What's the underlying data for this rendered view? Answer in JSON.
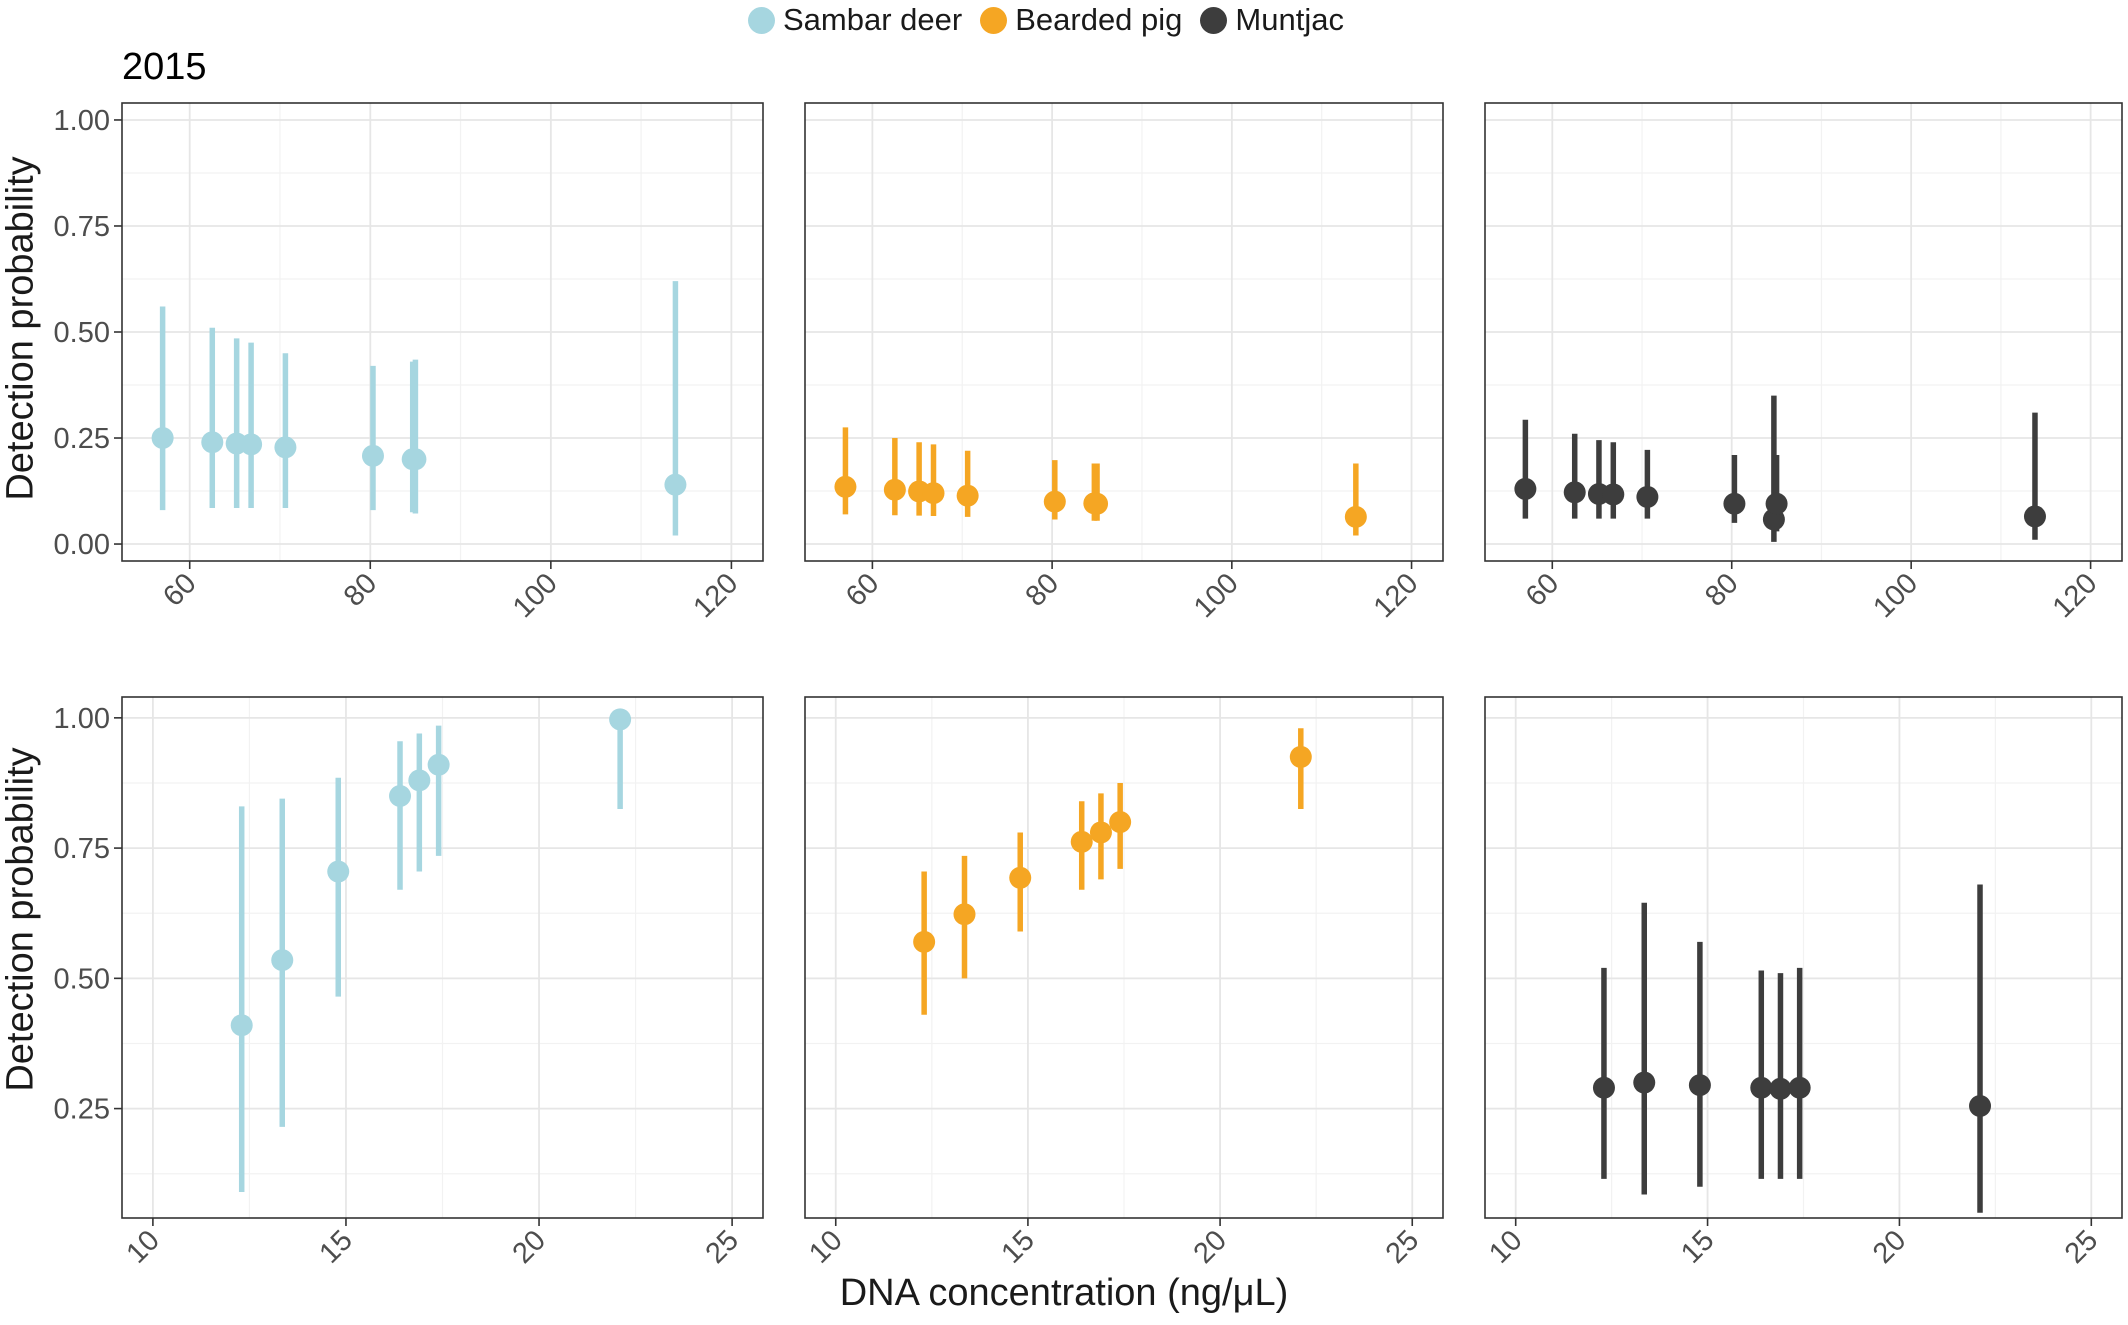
{
  "legend": {
    "items": [
      {
        "label": "Sambar deer",
        "color": "#A6D6E0"
      },
      {
        "label": "Bearded pig",
        "color": "#F5A623"
      },
      {
        "label": "Muntjac",
        "color": "#3D3D3D"
      }
    ]
  },
  "panel_title": "2015",
  "xlabel": "DNA concentration (ng/μL)",
  "ylabel": "Detection probability",
  "chart_data": [
    {
      "type": "scatter",
      "series_name": "Sambar deer",
      "color": "#A6D6E0",
      "title": "2015",
      "xlim": [
        52.5,
        123.5
      ],
      "ylim": [
        -0.04,
        1.04
      ],
      "xticks": [
        60,
        80,
        100,
        120
      ],
      "yticks": [
        0.0,
        0.25,
        0.5,
        0.75,
        1.0
      ],
      "ytick_labels": [
        "0.00",
        "0.25",
        "0.50",
        "0.75",
        "1.00"
      ],
      "points": [
        {
          "x": 57.0,
          "y": 0.25,
          "lo": 0.08,
          "hi": 0.56
        },
        {
          "x": 62.5,
          "y": 0.24,
          "lo": 0.085,
          "hi": 0.51
        },
        {
          "x": 65.2,
          "y": 0.237,
          "lo": 0.085,
          "hi": 0.485
        },
        {
          "x": 66.8,
          "y": 0.235,
          "lo": 0.085,
          "hi": 0.475
        },
        {
          "x": 70.6,
          "y": 0.228,
          "lo": 0.085,
          "hi": 0.45
        },
        {
          "x": 80.3,
          "y": 0.208,
          "lo": 0.08,
          "hi": 0.42
        },
        {
          "x": 84.7,
          "y": 0.2,
          "lo": 0.075,
          "hi": 0.43
        },
        {
          "x": 85.0,
          "y": 0.2,
          "lo": 0.072,
          "hi": 0.435
        },
        {
          "x": 113.8,
          "y": 0.14,
          "lo": 0.02,
          "hi": 0.62
        }
      ]
    },
    {
      "type": "scatter",
      "series_name": "Bearded pig",
      "color": "#F5A623",
      "xlim": [
        52.5,
        123.5
      ],
      "ylim": [
        -0.04,
        1.04
      ],
      "xticks": [
        60,
        80,
        100,
        120
      ],
      "points": [
        {
          "x": 57.0,
          "y": 0.135,
          "lo": 0.07,
          "hi": 0.275
        },
        {
          "x": 62.5,
          "y": 0.128,
          "lo": 0.068,
          "hi": 0.25
        },
        {
          "x": 65.2,
          "y": 0.124,
          "lo": 0.067,
          "hi": 0.24
        },
        {
          "x": 66.8,
          "y": 0.12,
          "lo": 0.066,
          "hi": 0.235
        },
        {
          "x": 70.6,
          "y": 0.114,
          "lo": 0.064,
          "hi": 0.22
        },
        {
          "x": 80.3,
          "y": 0.1,
          "lo": 0.058,
          "hi": 0.198
        },
        {
          "x": 84.7,
          "y": 0.096,
          "lo": 0.055,
          "hi": 0.19
        },
        {
          "x": 85.0,
          "y": 0.095,
          "lo": 0.055,
          "hi": 0.19
        },
        {
          "x": 113.8,
          "y": 0.064,
          "lo": 0.02,
          "hi": 0.19
        }
      ]
    },
    {
      "type": "scatter",
      "series_name": "Muntjac",
      "color": "#3D3D3D",
      "xlim": [
        52.5,
        123.5
      ],
      "ylim": [
        -0.04,
        1.04
      ],
      "xticks": [
        60,
        80,
        100,
        120
      ],
      "points": [
        {
          "x": 57.0,
          "y": 0.13,
          "lo": 0.06,
          "hi": 0.293
        },
        {
          "x": 62.5,
          "y": 0.122,
          "lo": 0.06,
          "hi": 0.26
        },
        {
          "x": 65.2,
          "y": 0.118,
          "lo": 0.06,
          "hi": 0.245
        },
        {
          "x": 66.8,
          "y": 0.117,
          "lo": 0.06,
          "hi": 0.24
        },
        {
          "x": 70.6,
          "y": 0.111,
          "lo": 0.06,
          "hi": 0.222
        },
        {
          "x": 80.3,
          "y": 0.095,
          "lo": 0.05,
          "hi": 0.21
        },
        {
          "x": 84.7,
          "y": 0.058,
          "lo": 0.005,
          "hi": 0.35
        },
        {
          "x": 85.0,
          "y": 0.095,
          "lo": 0.03,
          "hi": 0.21
        },
        {
          "x": 113.8,
          "y": 0.065,
          "lo": 0.01,
          "hi": 0.31
        }
      ]
    },
    {
      "type": "scatter",
      "series_name": "Sambar deer",
      "color": "#A6D6E0",
      "xlim": [
        9.2,
        25.8
      ],
      "ylim": [
        0.04,
        1.04
      ],
      "xticks": [
        10,
        15,
        20,
        25
      ],
      "yticks": [
        0.25,
        0.5,
        0.75,
        1.0
      ],
      "ytick_labels": [
        "0.25",
        "0.50",
        "0.75",
        "1.00"
      ],
      "points": [
        {
          "x": 12.3,
          "y": 0.41,
          "lo": 0.09,
          "hi": 0.83
        },
        {
          "x": 13.35,
          "y": 0.535,
          "lo": 0.215,
          "hi": 0.845
        },
        {
          "x": 14.8,
          "y": 0.705,
          "lo": 0.465,
          "hi": 0.885
        },
        {
          "x": 16.4,
          "y": 0.85,
          "lo": 0.67,
          "hi": 0.955
        },
        {
          "x": 16.9,
          "y": 0.88,
          "lo": 0.705,
          "hi": 0.97
        },
        {
          "x": 17.4,
          "y": 0.91,
          "lo": 0.735,
          "hi": 0.985
        },
        {
          "x": 22.1,
          "y": 0.997,
          "lo": 0.825,
          "hi": 1.0
        }
      ]
    },
    {
      "type": "scatter",
      "series_name": "Bearded pig",
      "color": "#F5A623",
      "xlim": [
        9.2,
        25.8
      ],
      "ylim": [
        0.04,
        1.04
      ],
      "xticks": [
        10,
        15,
        20,
        25
      ],
      "points": [
        {
          "x": 12.3,
          "y": 0.57,
          "lo": 0.43,
          "hi": 0.705
        },
        {
          "x": 13.35,
          "y": 0.623,
          "lo": 0.5,
          "hi": 0.735
        },
        {
          "x": 14.8,
          "y": 0.693,
          "lo": 0.59,
          "hi": 0.78
        },
        {
          "x": 16.4,
          "y": 0.762,
          "lo": 0.67,
          "hi": 0.84
        },
        {
          "x": 16.9,
          "y": 0.78,
          "lo": 0.69,
          "hi": 0.855
        },
        {
          "x": 17.4,
          "y": 0.8,
          "lo": 0.71,
          "hi": 0.875
        },
        {
          "x": 22.1,
          "y": 0.925,
          "lo": 0.825,
          "hi": 0.98
        }
      ]
    },
    {
      "type": "scatter",
      "series_name": "Muntjac",
      "color": "#3D3D3D",
      "xlim": [
        9.2,
        25.8
      ],
      "ylim": [
        0.04,
        1.04
      ],
      "xticks": [
        10,
        15,
        20,
        25
      ],
      "points": [
        {
          "x": 12.3,
          "y": 0.29,
          "lo": 0.115,
          "hi": 0.52
        },
        {
          "x": 13.35,
          "y": 0.3,
          "lo": 0.085,
          "hi": 0.645
        },
        {
          "x": 14.8,
          "y": 0.295,
          "lo": 0.1,
          "hi": 0.57
        },
        {
          "x": 16.4,
          "y": 0.29,
          "lo": 0.115,
          "hi": 0.515
        },
        {
          "x": 16.9,
          "y": 0.288,
          "lo": 0.115,
          "hi": 0.51
        },
        {
          "x": 17.4,
          "y": 0.29,
          "lo": 0.115,
          "hi": 0.52
        },
        {
          "x": 22.1,
          "y": 0.255,
          "lo": 0.05,
          "hi": 0.68
        }
      ]
    }
  ]
}
